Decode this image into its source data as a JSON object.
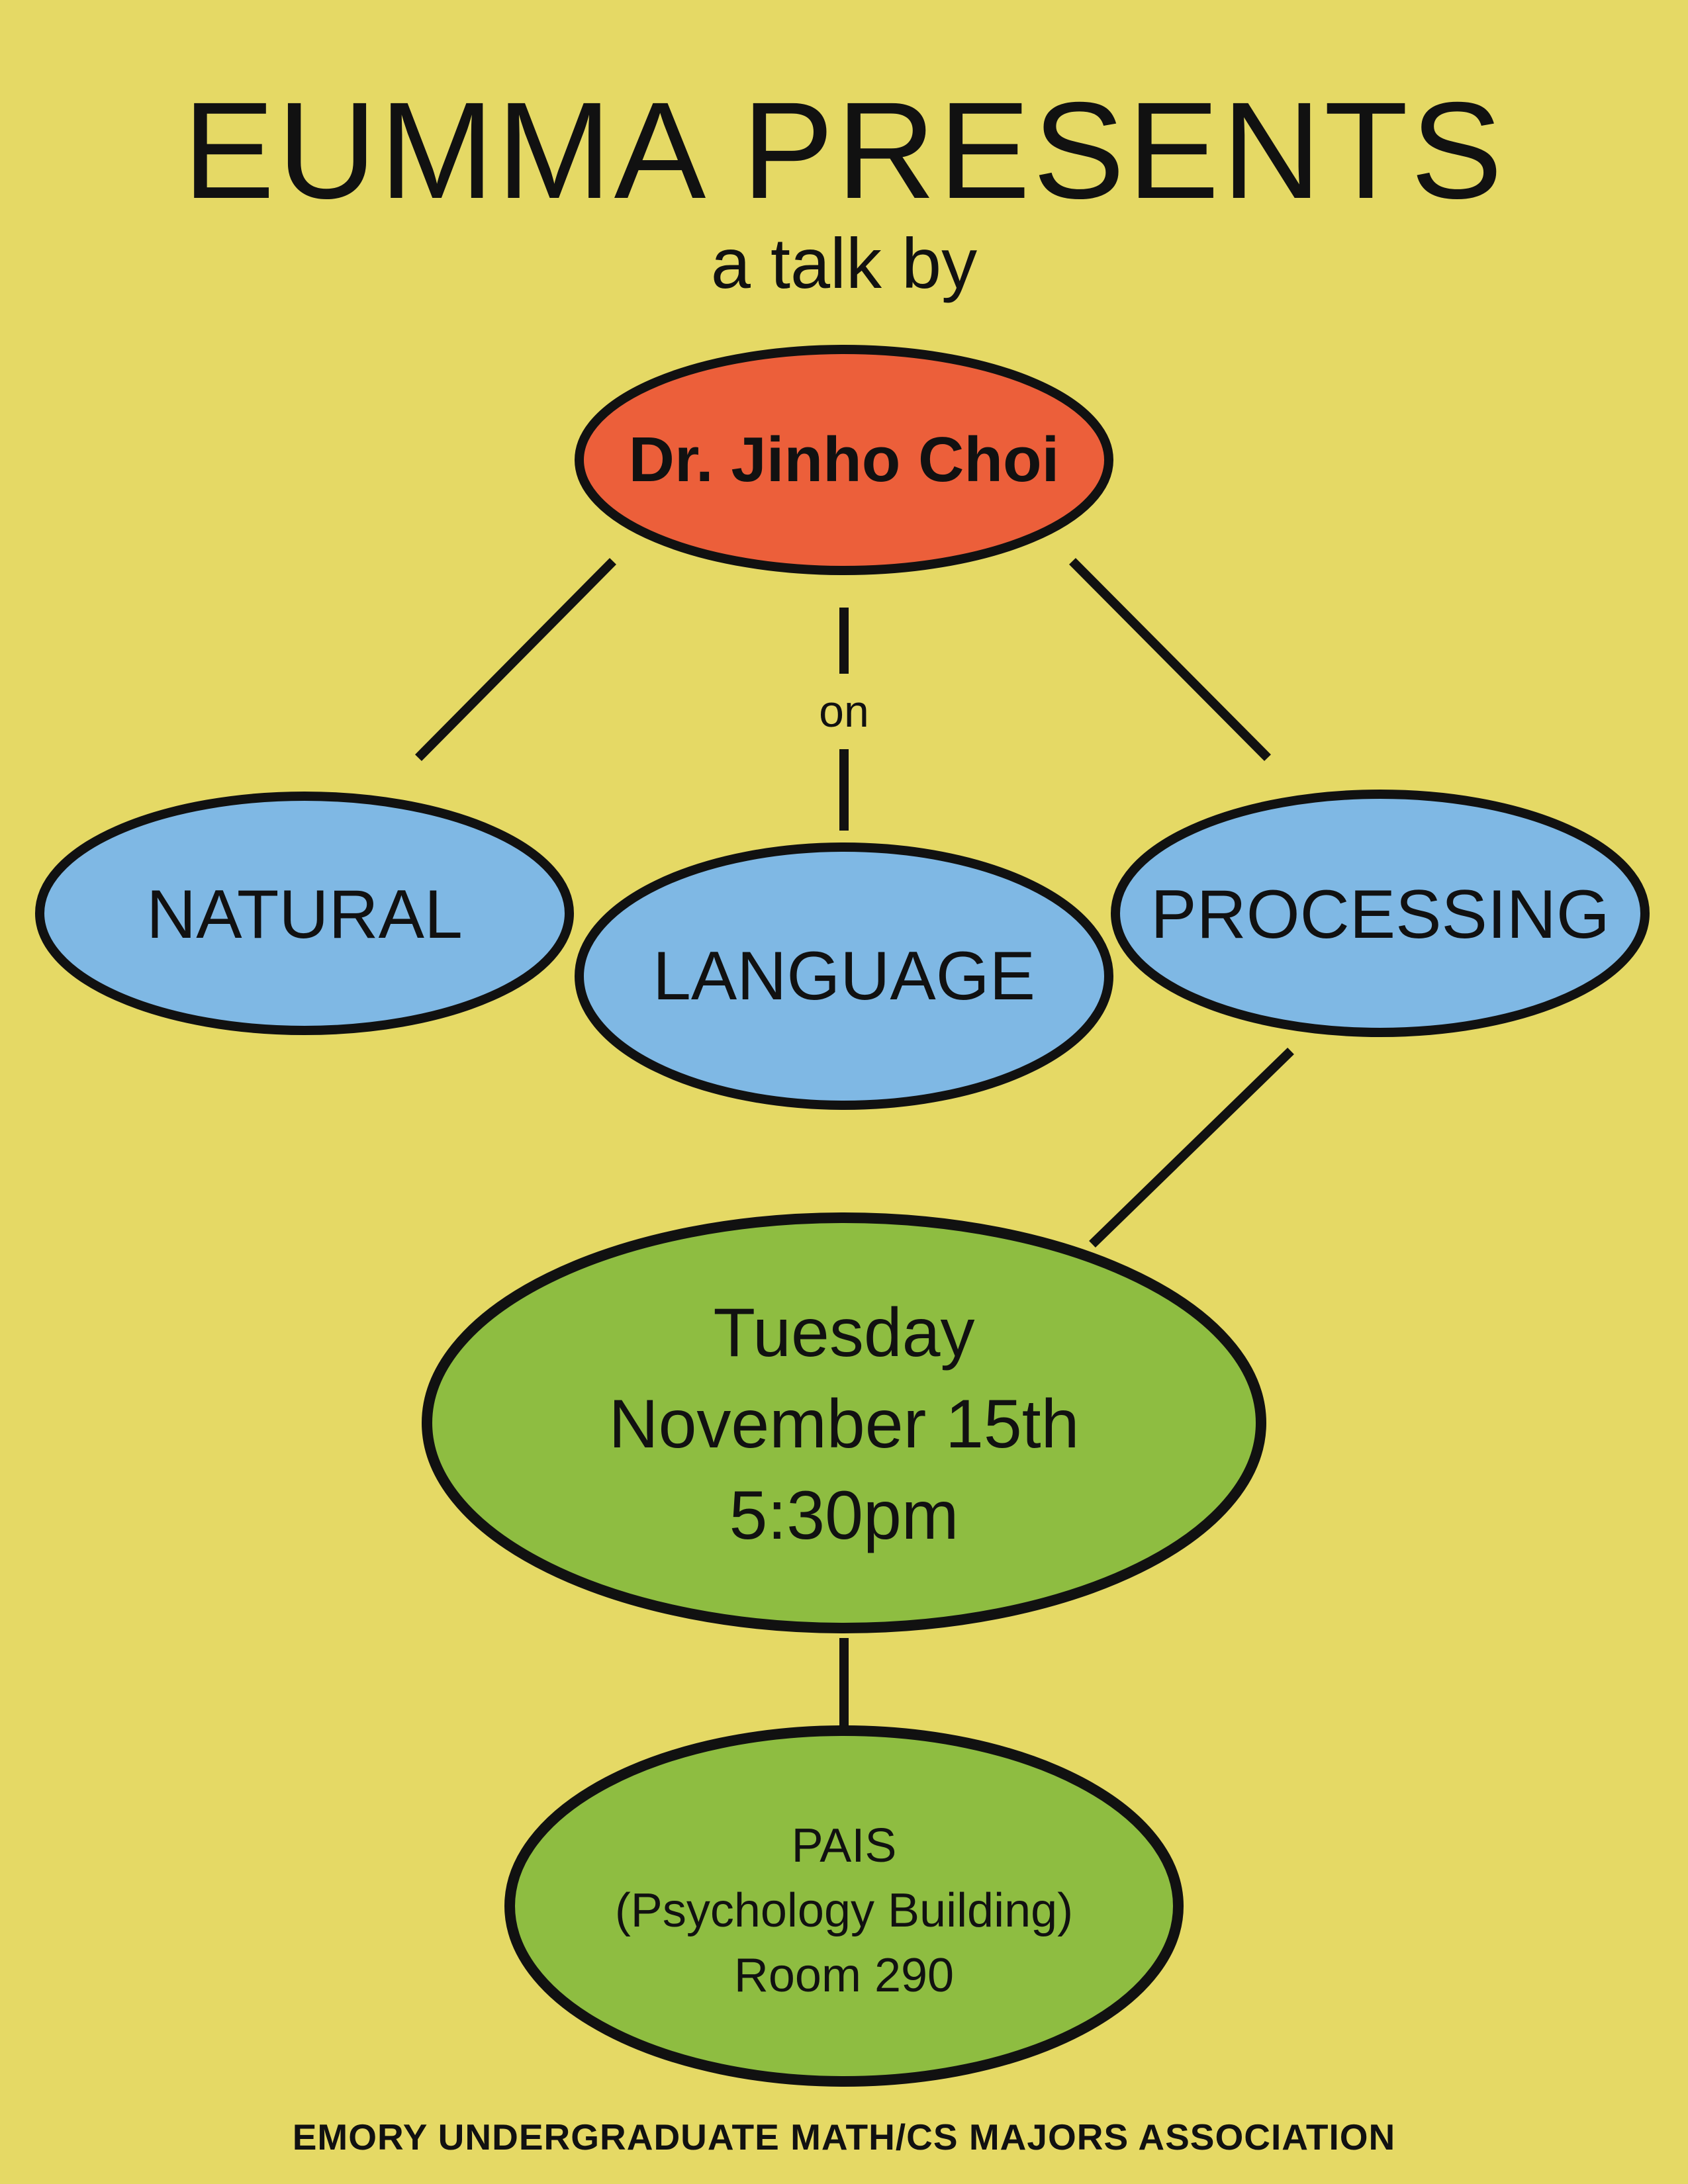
{
  "poster": {
    "title": "EUMMA PRESENTS",
    "subtitle": "a talk by",
    "speaker": "Dr. Jinho Choi",
    "connector_word": "on",
    "topics": [
      "NATURAL",
      "LANGUAGE",
      "PROCESSING"
    ],
    "when": {
      "day": "Tuesday",
      "date": "November 15th",
      "time": "5:30pm"
    },
    "where": {
      "building": "PAIS",
      "building_note": "(Psychology Building)",
      "room": "Room 290"
    },
    "footer": "EMORY UNDERGRADUATE MATH/CS MAJORS ASSOCIATION"
  },
  "colors": {
    "background": "#e5d965",
    "speaker_fill": "#ec5f3a",
    "topic_fill": "#7fb8e4",
    "event_fill": "#8ebd41",
    "outline": "#111111"
  }
}
